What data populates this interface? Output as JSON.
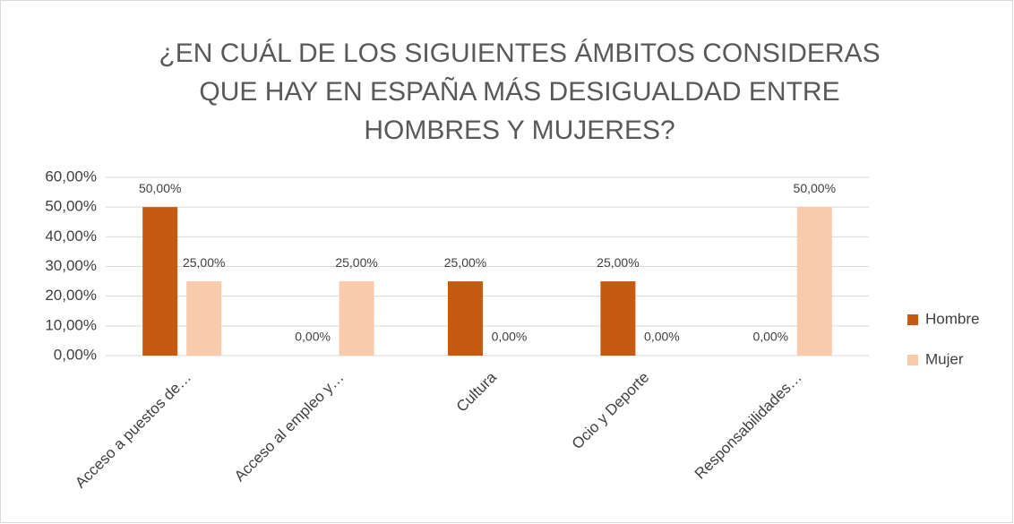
{
  "chart_data": {
    "type": "bar",
    "title": "¿EN CUÁL DE LOS SIGUIENTES ÁMBITOS CONSIDERAS QUE HAY EN ESPAÑA MÁS DESIGUALDAD ENTRE HOMBRES Y MUJERES?",
    "categories": [
      "Acceso a puestos de…",
      "Acceso al empleo y…",
      "Cultura",
      "Ocio y Deporte",
      "Responsabilidades…"
    ],
    "series": [
      {
        "name": "Hombre",
        "color": "#c55a11",
        "values": [
          50,
          0,
          25,
          25,
          0
        ],
        "value_labels": [
          "50,00%",
          "0,00%",
          "25,00%",
          "25,00%",
          "0,00%"
        ]
      },
      {
        "name": "Mujer",
        "color": "#f8cbad",
        "values": [
          25,
          25,
          0,
          0,
          50
        ],
        "value_labels": [
          "25,00%",
          "25,00%",
          "0,00%",
          "0,00%",
          "50,00%"
        ]
      }
    ],
    "ylim": [
      0,
      60
    ],
    "yticks": [
      {
        "value": 0,
        "label": "0,00%"
      },
      {
        "value": 10,
        "label": "10,00%"
      },
      {
        "value": 20,
        "label": "20,00%"
      },
      {
        "value": 30,
        "label": "30,00%"
      },
      {
        "value": 40,
        "label": "40,00%"
      },
      {
        "value": 50,
        "label": "50,00%"
      },
      {
        "value": 60,
        "label": "60,00%"
      }
    ],
    "grid": true,
    "legend": "right"
  }
}
